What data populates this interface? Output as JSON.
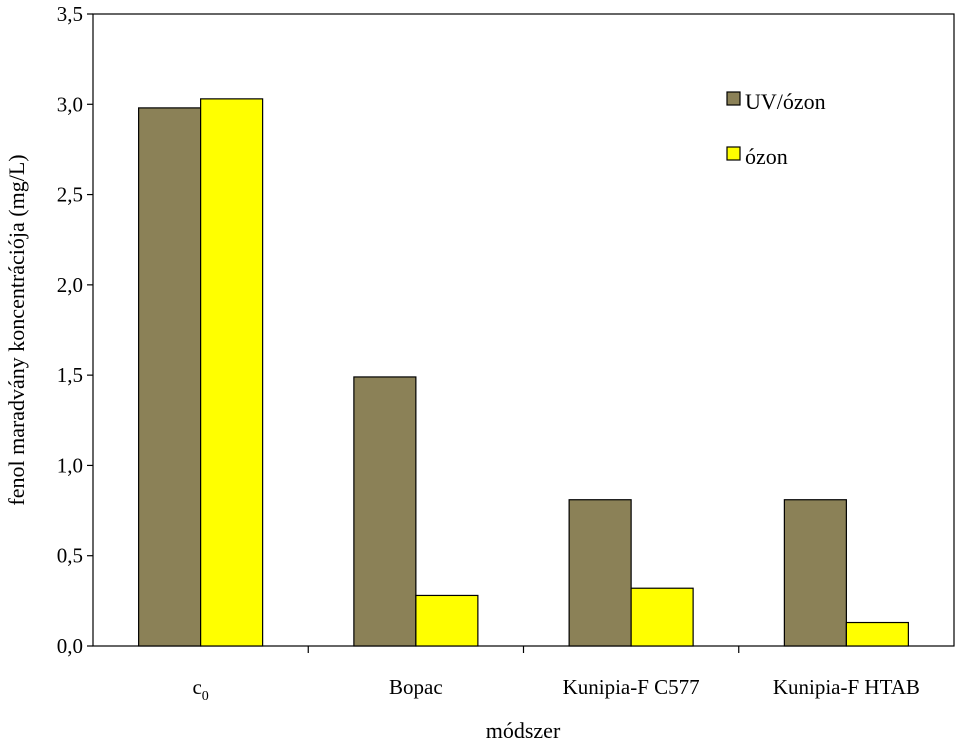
{
  "chart_data": {
    "type": "bar",
    "categories": [
      "c0",
      "Bopac",
      "Kunipia-F C577",
      "Kunipia-F HTAB"
    ],
    "category_display": [
      {
        "base": "c",
        "sub": "0"
      },
      {
        "base": "Bopac",
        "sub": ""
      },
      {
        "base": "Kunipia-F C577",
        "sub": ""
      },
      {
        "base": "Kunipia-F HTAB",
        "sub": ""
      }
    ],
    "series": [
      {
        "name": "UV/ózon",
        "color": "#8b8157",
        "values": [
          2.98,
          1.49,
          0.81,
          0.81
        ]
      },
      {
        "name": "ózon",
        "color": "#ffff00",
        "values": [
          3.03,
          0.28,
          0.32,
          0.13
        ]
      }
    ],
    "xlabel": "módszer",
    "ylabel": "fenol maradvány koncentrációja (mg/L)",
    "ylim": [
      0,
      3.5
    ],
    "yticks": [
      0,
      0.5,
      1.0,
      1.5,
      2.0,
      2.5,
      3.0,
      3.5
    ],
    "ytick_labels": [
      "0,0",
      "0,5",
      "1,0",
      "1,5",
      "2,0",
      "2,5",
      "3,0",
      "3,5"
    ],
    "grid": false,
    "legend_position": "top-right"
  }
}
